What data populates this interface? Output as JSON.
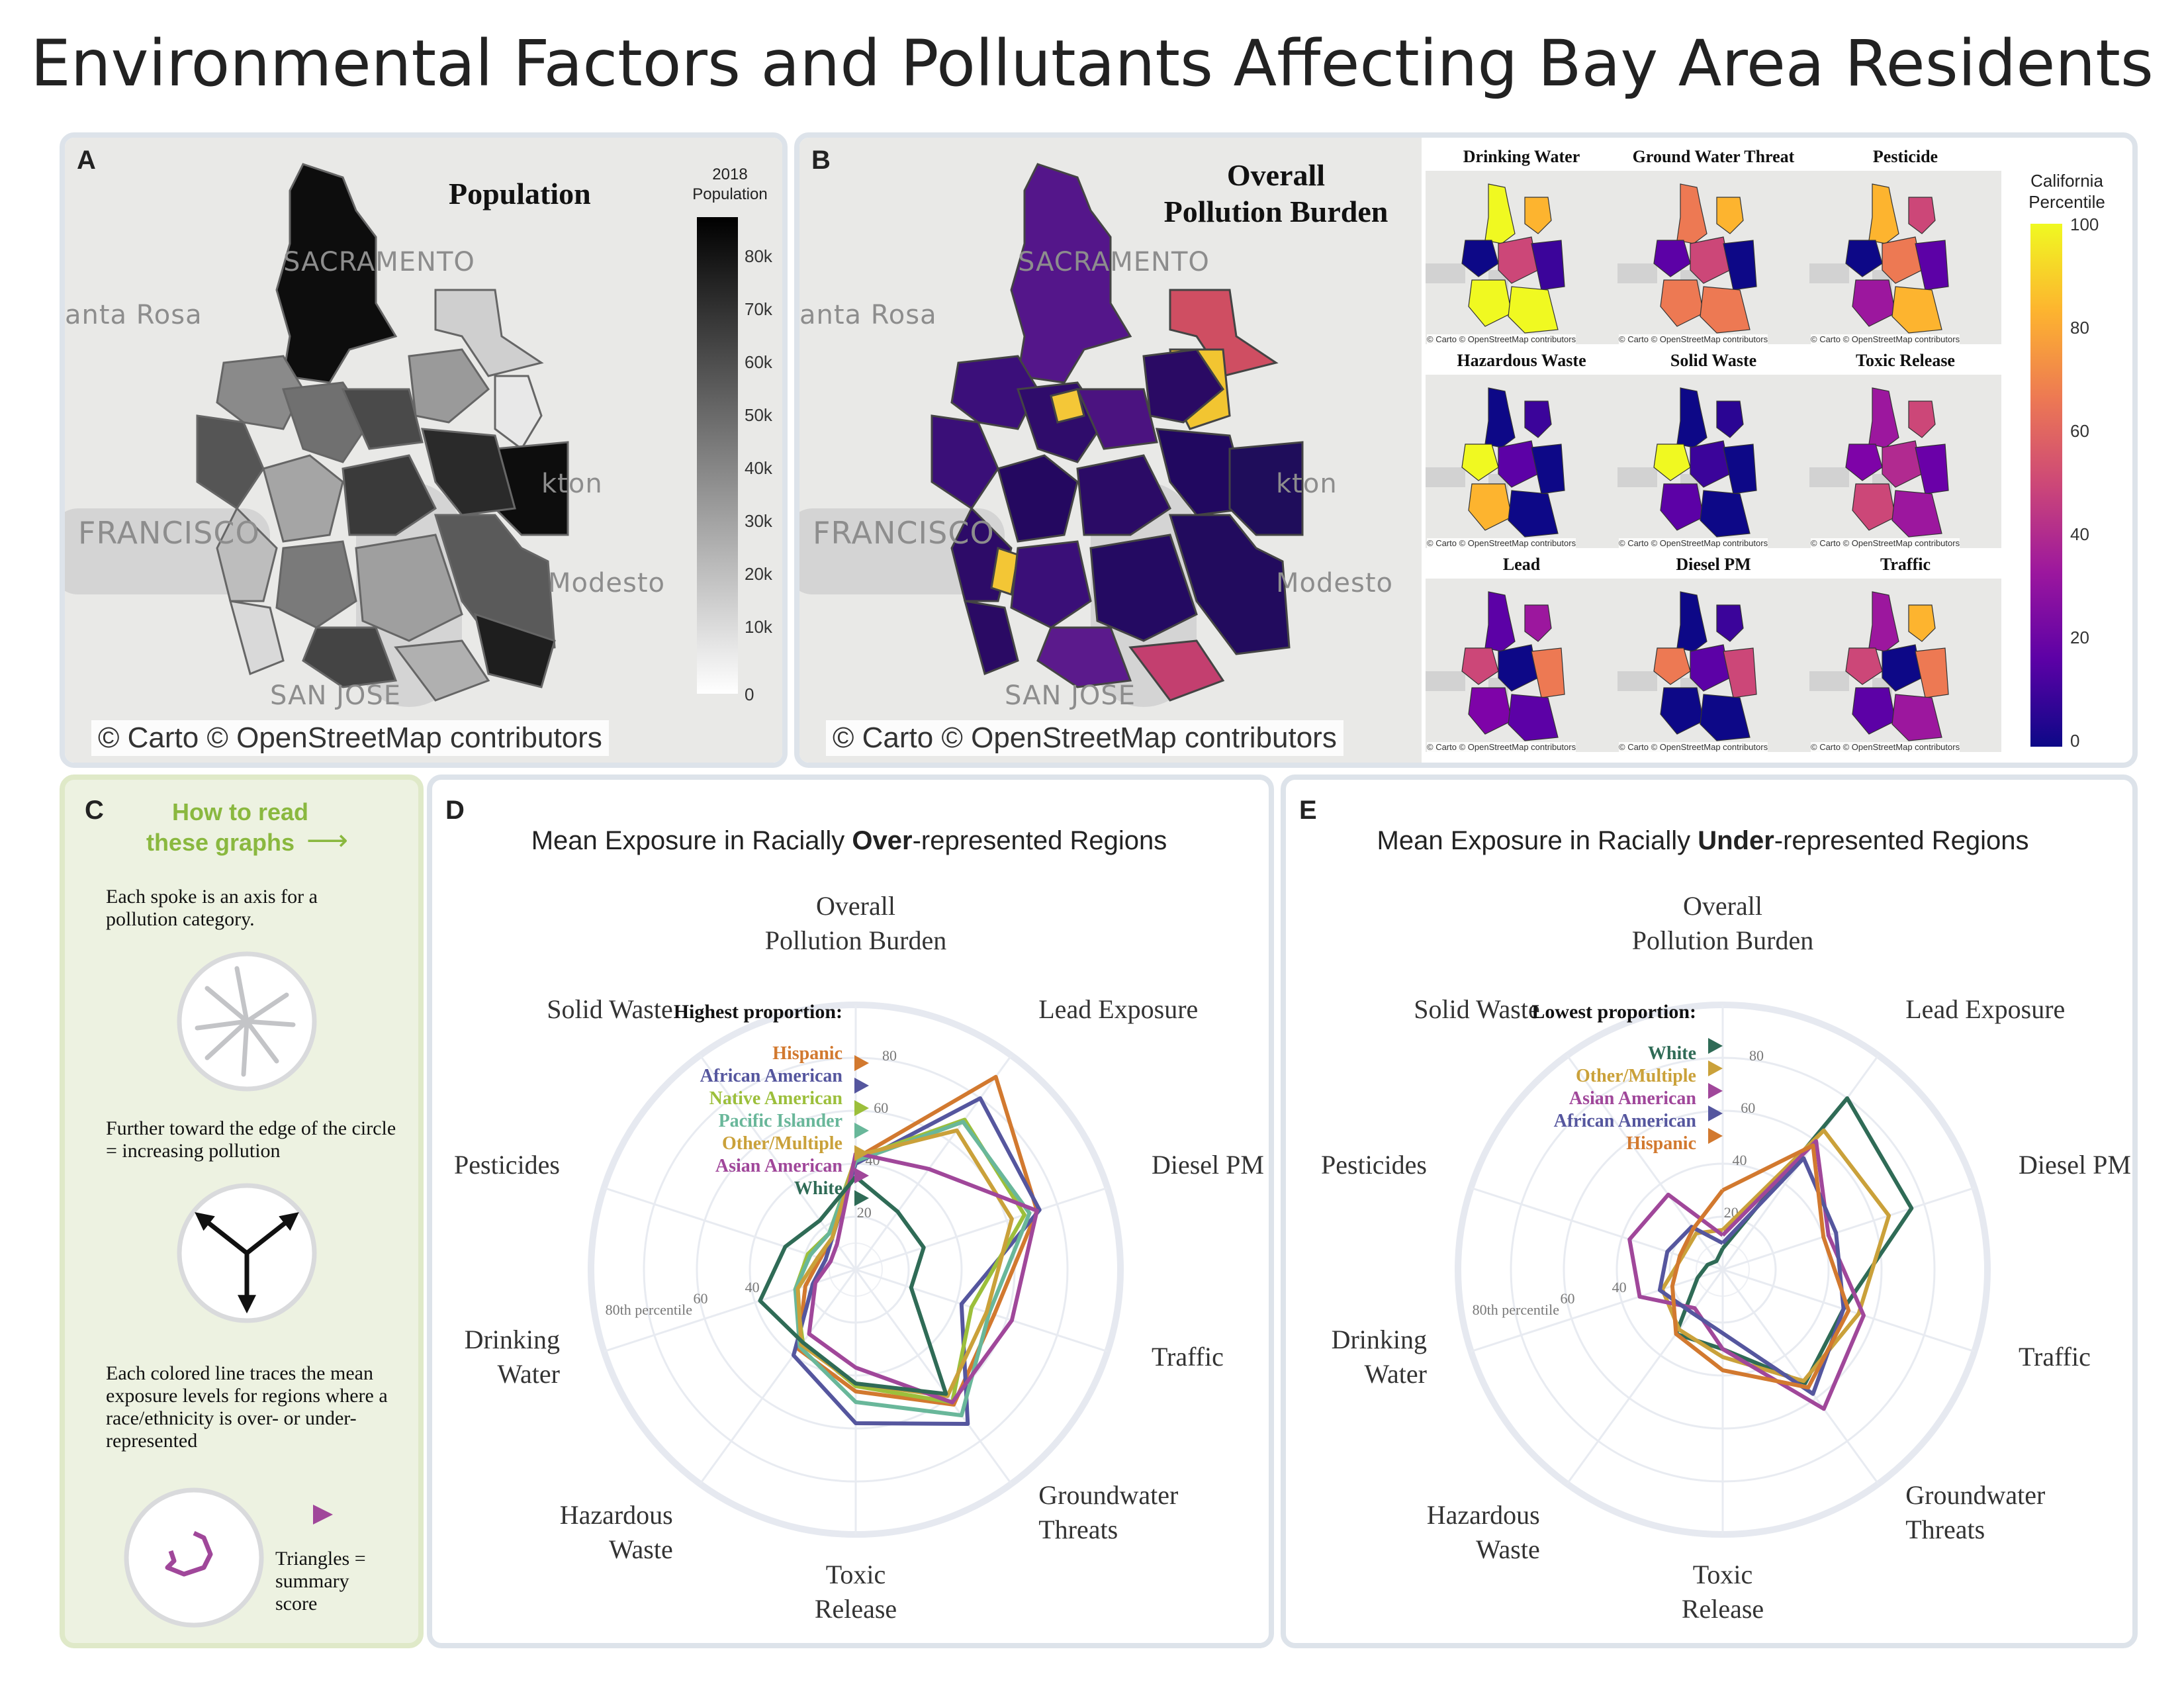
{
  "title": "Environmental Factors and Pollutants Affecting Bay Area Residents",
  "colors": {
    "panel_border": "#dde3ea",
    "panel_c_bg": "#edf2e1",
    "panel_c_border": "#dfe9c8",
    "accent_green": "#8ab83f",
    "grid": "#e6e9f0"
  },
  "panel_a": {
    "label": "A",
    "title": "Population",
    "colorbar_title": "2018\nPopulation",
    "colorbar_title_line1": "2018",
    "colorbar_title_line2": "Population",
    "colorbar_ticks": [
      "80k",
      "70k",
      "60k",
      "50k",
      "40k",
      "30k",
      "20k",
      "10k",
      "0"
    ],
    "attribution": "© Carto © OpenStreetMap contributors",
    "map_labels": [
      "SACRAMENTO",
      "anta Rosa",
      "FRANCISCO",
      "kton",
      "Modesto",
      "SAN JOSE"
    ]
  },
  "panel_b": {
    "label": "B",
    "title_line1": "Overall",
    "title_line2": "Pollution Burden",
    "attribution": "© Carto © OpenStreetMap contributors",
    "colorbar_title_line1": "California",
    "colorbar_title_line2": "Percentile",
    "colorbar_ticks": [
      "100",
      "80",
      "60",
      "40",
      "20",
      "0"
    ],
    "small_maps": [
      {
        "title": "Drinking Water"
      },
      {
        "title": "Ground Water Threat"
      },
      {
        "title": "Pesticide"
      },
      {
        "title": "Hazardous Waste"
      },
      {
        "title": "Solid Waste"
      },
      {
        "title": "Toxic Release"
      },
      {
        "title": "Lead"
      },
      {
        "title": "Diesel PM"
      },
      {
        "title": "Traffic"
      }
    ],
    "small_attribution": "© Carto © OpenStreetMap contributors"
  },
  "panel_c": {
    "label": "C",
    "heading_line1": "How to read",
    "heading_line2": "these graphs",
    "arrow": "⟶",
    "note1": "Each spoke is an axis for a pollution category.",
    "note2": "Further toward the edge of the circle = increasing pollution",
    "note3": "Each colored line traces the mean exposure levels for regions where a race/ethnicity is over- or under-represented",
    "note4": "Triangles = summary score"
  },
  "chart_data": [
    {
      "type": "radar",
      "panel": "D",
      "title_pre": "Mean Exposure in Racially ",
      "title_bold": "Over",
      "title_post": "-represented Regions",
      "axes": [
        "Overall Pollution Burden",
        "Lead Exposure",
        "Diesel PM",
        "Traffic",
        "Groundwater Threats",
        "Toxic Release",
        "Hazardous Waste",
        "Drinking Water",
        "Pesticides",
        "Solid Waste"
      ],
      "axis_label_lines": [
        [
          "Overall",
          "Pollution Burden"
        ],
        [
          "Lead Exposure"
        ],
        [
          "Diesel PM"
        ],
        [
          "Traffic"
        ],
        [
          "Groundwater",
          "Threats"
        ],
        [
          "Toxic",
          "Release"
        ],
        [
          "Hazardous",
          "Waste"
        ],
        [
          "Drinking",
          "Water"
        ],
        [
          "Pesticides"
        ],
        [
          "Solid Waste"
        ]
      ],
      "rlim": [
        0,
        100
      ],
      "ticks": [
        "20",
        "40",
        "60",
        "80"
      ],
      "tick_80_label": "80th percentile",
      "legend_title": "Highest proportion:",
      "series": [
        {
          "name": "Hispanic",
          "color": "#d2792f",
          "values": [
            42,
            90,
            72,
            55,
            63,
            46,
            37,
            20,
            14,
            15
          ]
        },
        {
          "name": "African American",
          "color": "#55569e",
          "values": [
            40,
            80,
            73,
            42,
            72,
            58,
            40,
            17,
            12,
            15
          ]
        },
        {
          "name": "Native American",
          "color": "#9cbf3b",
          "values": [
            42,
            70,
            67,
            46,
            62,
            44,
            34,
            24,
            19,
            17
          ]
        },
        {
          "name": "Pacific Islander",
          "color": "#69b79a",
          "values": [
            41,
            69,
            69,
            53,
            68,
            50,
            36,
            24,
            18,
            17
          ]
        },
        {
          "name": "Other/Multiple",
          "color": "#caa13a",
          "values": [
            43,
            65,
            62,
            52,
            59,
            43,
            35,
            23,
            15,
            15
          ]
        },
        {
          "name": "Asian American",
          "color": "#a0479a",
          "values": [
            44,
            47,
            72,
            62,
            62,
            37,
            30,
            16,
            10,
            12
          ]
        },
        {
          "name": "White",
          "color": "#2f6b56",
          "values": [
            35,
            27,
            27,
            22,
            58,
            43,
            34,
            38,
            28,
            23
          ]
        }
      ],
      "summary_order": [
        "Hispanic",
        "African American",
        "Native American",
        "Pacific Islander",
        "Other/Multiple",
        "Asian American",
        "White"
      ]
    },
    {
      "type": "radar",
      "panel": "E",
      "title_pre": "Mean Exposure in Racially ",
      "title_bold": "Under",
      "title_post": "-represented Regions",
      "axes": [
        "Overall Pollution Burden",
        "Lead Exposure",
        "Diesel PM",
        "Traffic",
        "Groundwater Threats",
        "Toxic Release",
        "Hazardous Waste",
        "Drinking Water",
        "Pesticides",
        "Solid Waste"
      ],
      "axis_label_lines": [
        [
          "Overall",
          "Pollution Burden"
        ],
        [
          "Lead Exposure"
        ],
        [
          "Diesel PM"
        ],
        [
          "Traffic"
        ],
        [
          "Groundwater",
          "Threats"
        ],
        [
          "Toxic",
          "Release"
        ],
        [
          "Hazardous",
          "Waste"
        ],
        [
          "Drinking",
          "Water"
        ],
        [
          "Pesticides"
        ],
        [
          "Solid Waste"
        ]
      ],
      "rlim": [
        0,
        100
      ],
      "ticks": [
        "20",
        "40",
        "60",
        "80"
      ],
      "tick_80_label": "80th percentile",
      "legend_title": "Lowest proportion:",
      "series": [
        {
          "name": "White",
          "color": "#2f6b56",
          "values": [
            8,
            80,
            75,
            48,
            53,
            30,
            30,
            10,
            6,
            4
          ]
        },
        {
          "name": "Other/Multiple",
          "color": "#caa13a",
          "values": [
            15,
            65,
            66,
            54,
            52,
            33,
            28,
            24,
            16,
            17
          ]
        },
        {
          "name": "Asian American",
          "color": "#a0479a",
          "values": [
            13,
            60,
            42,
            56,
            65,
            30,
            18,
            33,
            37,
            35
          ]
        },
        {
          "name": "African American",
          "color": "#55569e",
          "values": [
            10,
            52,
            45,
            48,
            58,
            24,
            20,
            25,
            22,
            20
          ]
        },
        {
          "name": "Hispanic",
          "color": "#d2792f",
          "values": [
            30,
            58,
            40,
            50,
            55,
            38,
            30,
            20,
            17,
            19
          ]
        }
      ],
      "summary_order": [
        "White",
        "Other/Multiple",
        "Asian American",
        "African American",
        "Hispanic"
      ]
    }
  ],
  "panel_d": {
    "label": "D"
  },
  "panel_e": {
    "label": "E"
  }
}
